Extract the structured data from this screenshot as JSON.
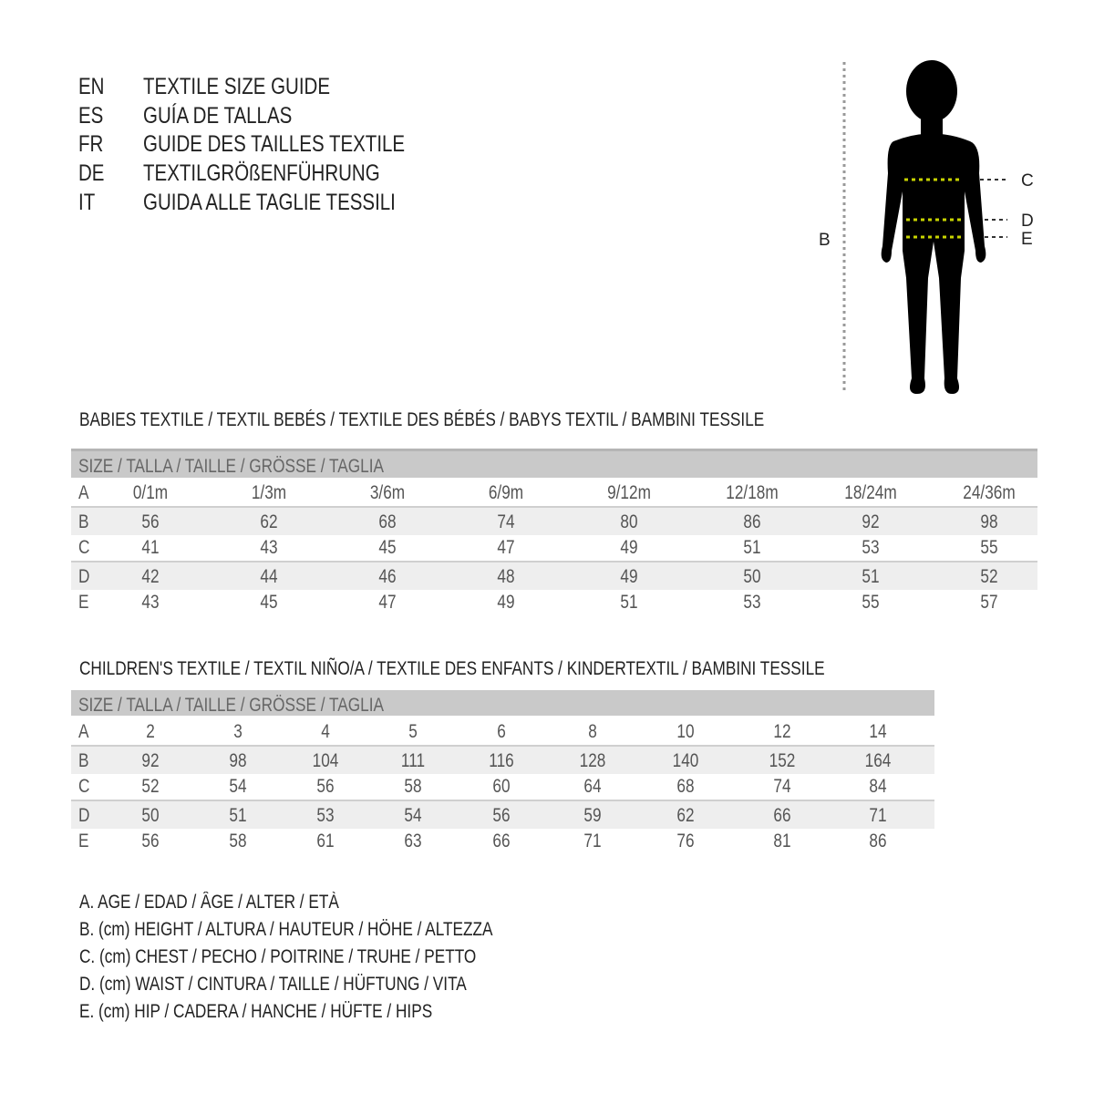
{
  "header": {
    "lines": [
      {
        "code": "EN",
        "title": "TEXTILE SIZE GUIDE"
      },
      {
        "code": "ES",
        "title": "GUÍA DE TALLAS"
      },
      {
        "code": "FR",
        "title": "GUIDE DES TAILLES TEXTILE"
      },
      {
        "code": "DE",
        "title": "TEXTILGRÖßENFÜHRUNG"
      },
      {
        "code": "IT",
        "title": "GUIDA ALLE TAGLIE TESSILI"
      }
    ]
  },
  "figure": {
    "labels": {
      "B": "B",
      "C": "C",
      "D": "D",
      "E": "E"
    },
    "measure_line_color": "#c8d400"
  },
  "babies": {
    "title": "BABIES TEXTILE / TEXTIL BEBÉS / TEXTILE DES BÉBÉS / BABYS TEXTIL  / BAMBINI TESSILE",
    "size_header": "SIZE / TALLA / TAILLE / GRÖSSE / TAGLIA",
    "rows": [
      {
        "label": "A",
        "values": [
          "0/1m",
          "1/3m",
          "3/6m",
          "6/9m",
          "9/12m",
          "12/18m",
          "18/24m",
          "24/36m"
        ]
      },
      {
        "label": "B",
        "values": [
          "56",
          "62",
          "68",
          "74",
          "80",
          "86",
          "92",
          "98"
        ]
      },
      {
        "label": "C",
        "values": [
          "41",
          "43",
          "45",
          "47",
          "49",
          "51",
          "53",
          "55"
        ]
      },
      {
        "label": "D",
        "values": [
          "42",
          "44",
          "46",
          "48",
          "49",
          "50",
          "51",
          "52"
        ]
      },
      {
        "label": "E",
        "values": [
          "43",
          "45",
          "47",
          "49",
          "51",
          "53",
          "55",
          "57"
        ]
      }
    ]
  },
  "children": {
    "title": "CHILDREN'S TEXTILE / TEXTIL NIÑO/A / TEXTILE DES ENFANTS / KINDERTEXTIL / BAMBINI TESSILE",
    "size_header": "SIZE / TALLA / TAILLE / GRÖSSE / TAGLIA",
    "rows": [
      {
        "label": "A",
        "values": [
          "2",
          "3",
          "4",
          "5",
          "6",
          "8",
          "10",
          "12",
          "14"
        ]
      },
      {
        "label": "B",
        "values": [
          "92",
          "98",
          "104",
          "111",
          "116",
          "128",
          "140",
          "152",
          "164"
        ]
      },
      {
        "label": "C",
        "values": [
          "52",
          "54",
          "56",
          "58",
          "60",
          "64",
          "68",
          "74",
          "84"
        ]
      },
      {
        "label": "D",
        "values": [
          "50",
          "51",
          "53",
          "54",
          "56",
          "59",
          "62",
          "66",
          "71"
        ]
      },
      {
        "label": "E",
        "values": [
          "56",
          "58",
          "61",
          "63",
          "66",
          "71",
          "76",
          "81",
          "86"
        ]
      }
    ]
  },
  "legend": [
    "A. AGE / EDAD / ÂGE / ALTER / ETÀ",
    "B. (cm) HEIGHT / ALTURA / HAUTEUR / HÖHE / ALTEZZA",
    "C. (cm) CHEST / PECHO / POITRINE / TRUHE / PETTO",
    "D. (cm) WAIST / CINTURA / TAILLE / HÜFTUNG / VITA",
    "E. (cm) HIP / CADERA / HANCHE / HÜFTE / HIPS"
  ]
}
